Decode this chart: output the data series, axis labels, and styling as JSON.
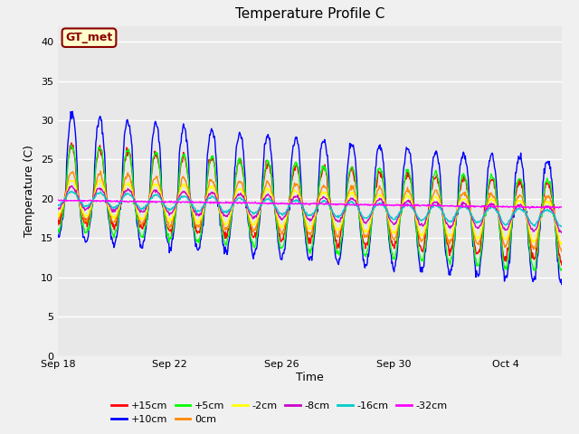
{
  "title": "Temperature Profile C",
  "xlabel": "Time",
  "ylabel": "Temperature (C)",
  "ylim": [
    0,
    42
  ],
  "yticks": [
    0,
    5,
    10,
    15,
    20,
    25,
    30,
    35,
    40
  ],
  "background_color": "#f0f0f0",
  "plot_bg_color": "#e8e8e8",
  "annotation_text": "GT_met",
  "annotation_color": "#8B0000",
  "annotation_bg": "#ffffcc",
  "series_labels": [
    "+15cm",
    "+10cm",
    "+5cm",
    "0cm",
    "-2cm",
    "-8cm",
    "-16cm",
    "-32cm"
  ],
  "series_colors": [
    "#ff0000",
    "#0000ff",
    "#00ff00",
    "#ff8800",
    "#ffff00",
    "#cc00cc",
    "#00cccc",
    "#ff00ff"
  ],
  "xtick_labels": [
    "Sep 18",
    "Sep 22",
    "Sep 26",
    "Sep 30",
    "Oct 4"
  ],
  "xtick_positions": [
    0,
    4,
    8,
    12,
    16
  ],
  "n_days": 18
}
